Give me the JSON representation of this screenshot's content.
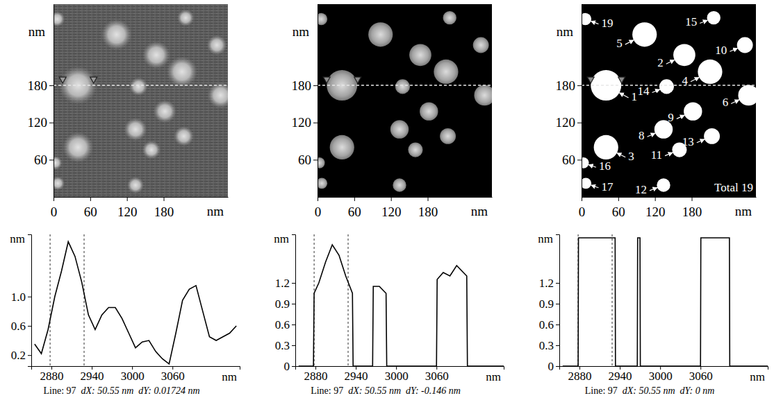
{
  "chart_data": [
    {
      "type": "image",
      "xlim": [
        0,
        285
      ],
      "ylim": [
        0,
        311
      ],
      "xticks": [
        0,
        60,
        120,
        180
      ],
      "yticks": [
        60,
        120,
        180
      ],
      "x_label": "nm",
      "y_label": "nm",
      "profile_y": 180,
      "profile_markers": [
        15,
        65.55
      ],
      "particles": {
        "x": [
          40,
          168,
          40,
          210,
          103,
          273,
          134,
          182,
          267,
          160,
          134,
          213,
          139,
          216,
          3,
          7,
          6
        ],
        "y": [
          180,
          229,
          80,
          202,
          262,
          164,
          109,
          138,
          245,
          76,
          19,
          98,
          178,
          289,
          55,
          22,
          287
        ],
        "r": [
          25,
          18,
          20,
          20,
          20,
          17,
          15,
          15,
          13,
          12,
          11,
          13,
          12,
          11,
          9,
          9,
          10
        ]
      }
    },
    {
      "type": "masked",
      "xlim": [
        0,
        285
      ],
      "ylim": [
        0,
        311
      ],
      "xticks": [
        0,
        60,
        120,
        180
      ],
      "yticks": [
        60,
        120,
        180
      ],
      "x_label": "nm",
      "y_label": "nm",
      "profile_y": 180,
      "profile_markers": [
        15,
        65.55
      ],
      "particles": {
        "x": [
          40,
          168,
          40,
          210,
          103,
          273,
          134,
          182,
          267,
          160,
          134,
          213,
          139,
          216,
          3,
          7,
          6
        ],
        "y": [
          180,
          229,
          80,
          202,
          262,
          164,
          109,
          138,
          245,
          76,
          19,
          98,
          178,
          289,
          55,
          22,
          287
        ],
        "r": [
          25,
          18,
          20,
          20,
          20,
          17,
          15,
          15,
          13,
          12,
          11,
          13,
          12,
          11,
          9,
          9,
          10
        ]
      }
    },
    {
      "type": "mask",
      "xlim": [
        0,
        285
      ],
      "ylim": [
        0,
        311
      ],
      "xticks": [
        0,
        60,
        120,
        180
      ],
      "yticks": [
        60,
        120,
        180
      ],
      "x_label": "nm",
      "y_label": "nm",
      "profile_y": 180,
      "profile_markers": [
        15,
        65.55
      ],
      "particles": {
        "x": [
          40,
          168,
          40,
          210,
          103,
          273,
          134,
          182,
          267,
          160,
          134,
          213,
          139,
          216,
          3,
          7,
          6
        ],
        "y": [
          180,
          229,
          80,
          202,
          262,
          164,
          109,
          138,
          245,
          76,
          19,
          98,
          178,
          289,
          55,
          22,
          287
        ],
        "r": [
          25,
          18,
          20,
          20,
          20,
          17,
          15,
          15,
          13,
          12,
          11,
          13,
          12,
          11,
          9,
          9,
          10
        ],
        "labels": [
          "1",
          "2",
          "3",
          "4",
          "5",
          "6",
          "8",
          "9",
          "10",
          "11",
          "12",
          "13",
          "14",
          "15",
          "16",
          "17",
          "19"
        ]
      },
      "annotation": "Total 19"
    },
    {
      "type": "line",
      "xlim": [
        2850,
        3160
      ],
      "ylim": [
        0.05,
        1.85
      ],
      "xticks": [
        2880,
        2940,
        3000,
        3060
      ],
      "yticks": [
        0.2,
        0.6,
        {
          "value": 1,
          "label": "1.0"
        }
      ],
      "x_label": "nm",
      "y_label": "nm",
      "markers": [
        2878,
        2928.55
      ],
      "x": [
        2855,
        2865,
        2875,
        2885,
        2895,
        2905,
        2915,
        2925,
        2935,
        2945,
        2955,
        2965,
        2975,
        2985,
        2995,
        3005,
        3015,
        3025,
        3035,
        3045,
        3055,
        3065,
        3075,
        3085,
        3095,
        3105,
        3115,
        3125,
        3135,
        3145,
        3155
      ],
      "values": [
        0.35,
        0.22,
        0.55,
        1.0,
        1.35,
        1.75,
        1.55,
        1.2,
        0.75,
        0.55,
        0.75,
        0.85,
        0.85,
        0.7,
        0.5,
        0.3,
        0.38,
        0.4,
        0.25,
        0.15,
        0.08,
        0.5,
        0.95,
        1.1,
        1.15,
        0.8,
        0.45,
        0.4,
        0.45,
        0.5,
        0.6
      ],
      "caption": [
        "Line: 97",
        "dX: 50.55 nm",
        "dY: 0.01724 nm"
      ]
    },
    {
      "type": "line",
      "xlim": [
        2850,
        3160
      ],
      "ylim": [
        0,
        1.9
      ],
      "xticks": [
        2880,
        2940,
        3000,
        3060
      ],
      "yticks": [
        0,
        0.3,
        0.6,
        0.9,
        1.2
      ],
      "x_label": "nm",
      "y_label": "nm",
      "markers": [
        2878,
        2928.55
      ],
      "x": [
        2855,
        2877,
        2878,
        2885,
        2895,
        2905,
        2915,
        2925,
        2935,
        2936,
        2965,
        2966,
        2975,
        2985,
        2986,
        3060,
        3061,
        3070,
        3080,
        3090,
        3100,
        3105,
        3106,
        3160
      ],
      "values": [
        0,
        0,
        1.05,
        1.2,
        1.5,
        1.75,
        1.6,
        1.3,
        1.05,
        0,
        0,
        1.15,
        1.15,
        1.05,
        0,
        0,
        1.25,
        1.35,
        1.3,
        1.45,
        1.35,
        1.3,
        0,
        0
      ],
      "caption": [
        "Line: 97",
        "dX: 50.55 nm",
        "dY: -0.146 nm"
      ]
    },
    {
      "type": "line",
      "xlim": [
        2850,
        3160
      ],
      "ylim": [
        0,
        1.9
      ],
      "xticks": [
        2880,
        2940,
        3000,
        3060
      ],
      "yticks": [
        0,
        0.3,
        0.6,
        0.9,
        1.2
      ],
      "x_label": "nm",
      "y_label": "nm",
      "markers": [
        2878,
        2928.55
      ],
      "x": [
        2855,
        2878,
        2878.5,
        2933,
        2933.5,
        2966,
        2966.5,
        2970,
        2970.5,
        3060,
        3060.5,
        3103,
        3103.5,
        3160
      ],
      "values": [
        0,
        0,
        1.85,
        1.85,
        0,
        0,
        1.85,
        1.85,
        0,
        0,
        1.85,
        1.85,
        0,
        0
      ],
      "caption": [
        "Line: 97",
        "dX: 50.55 nm",
        "dY: 0 nm"
      ]
    }
  ]
}
